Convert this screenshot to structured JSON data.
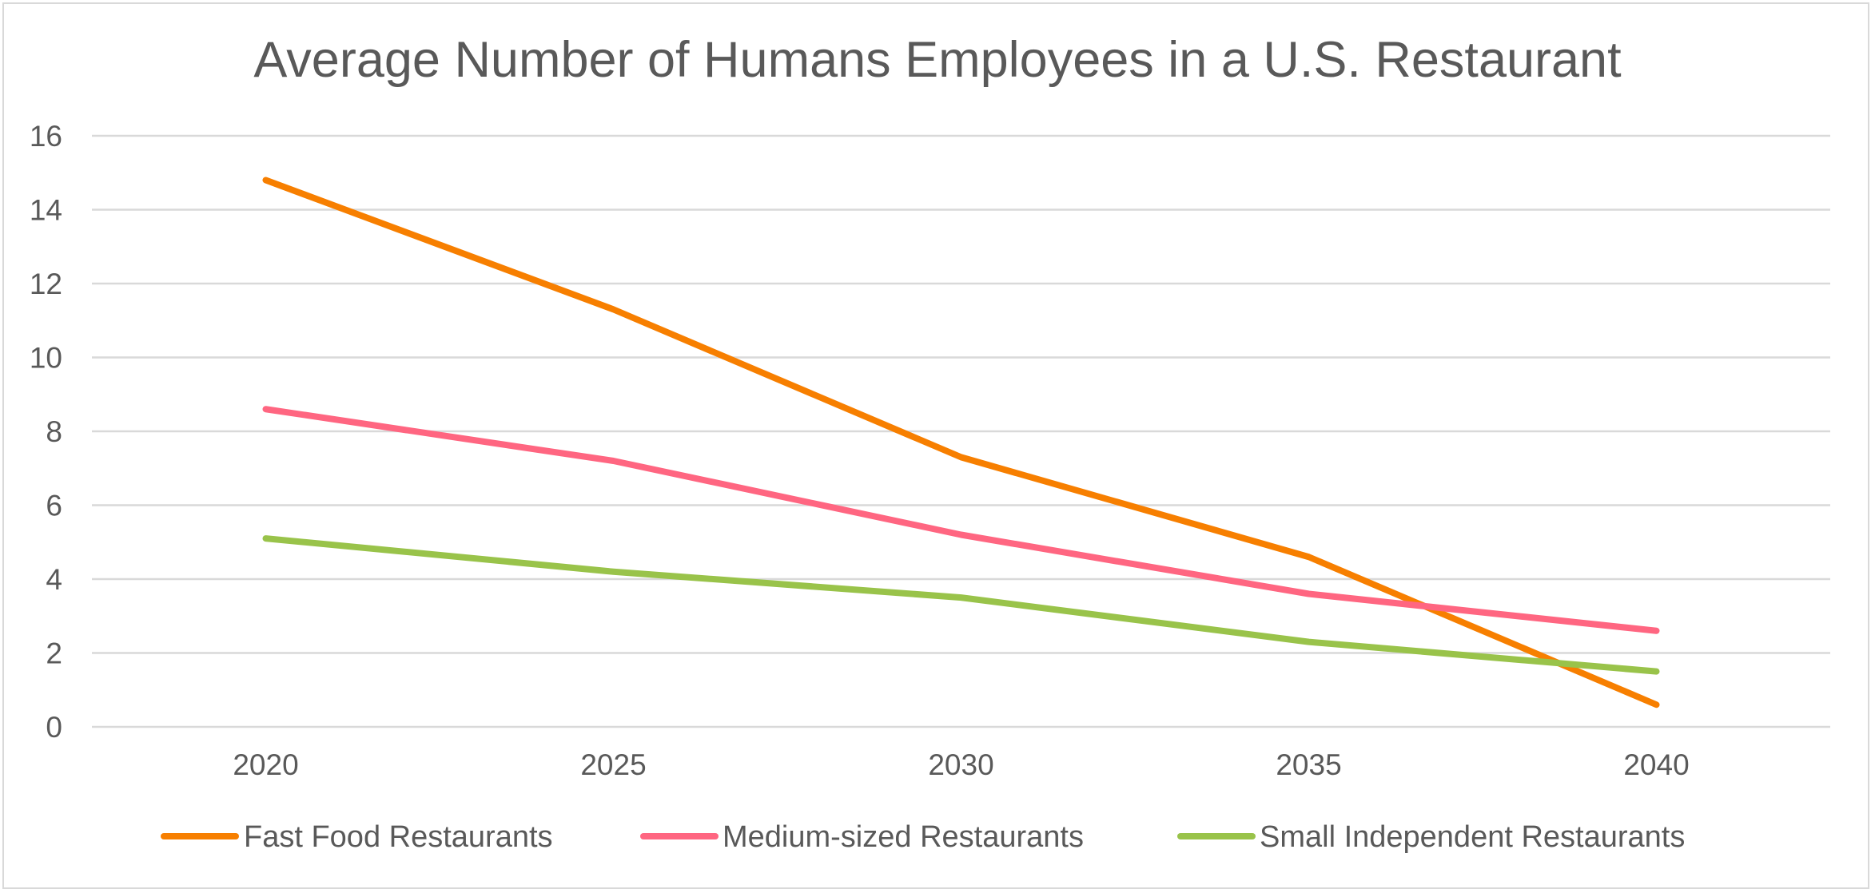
{
  "chart_data": {
    "type": "line",
    "title": "Average Number of Humans Employees in a U.S. Restaurant",
    "xlabel": "",
    "ylabel": "",
    "categories": [
      "2020",
      "2025",
      "2030",
      "2035",
      "2040"
    ],
    "ylim": [
      0,
      16
    ],
    "yticks": [
      "0",
      "2",
      "4",
      "6",
      "8",
      "10",
      "12",
      "14",
      "16"
    ],
    "grid": true,
    "legend_position": "bottom",
    "series": [
      {
        "name": "Fast Food Restaurants",
        "color": "#f77f00",
        "values": [
          14.8,
          11.3,
          7.3,
          4.6,
          0.6
        ]
      },
      {
        "name": "Medium-sized Restaurants",
        "color": "#ff6681",
        "values": [
          8.6,
          7.2,
          5.2,
          3.6,
          2.6
        ]
      },
      {
        "name": "Small Independent Restaurants",
        "color": "#99c34a",
        "values": [
          5.1,
          4.2,
          3.5,
          2.3,
          1.5
        ]
      }
    ]
  }
}
